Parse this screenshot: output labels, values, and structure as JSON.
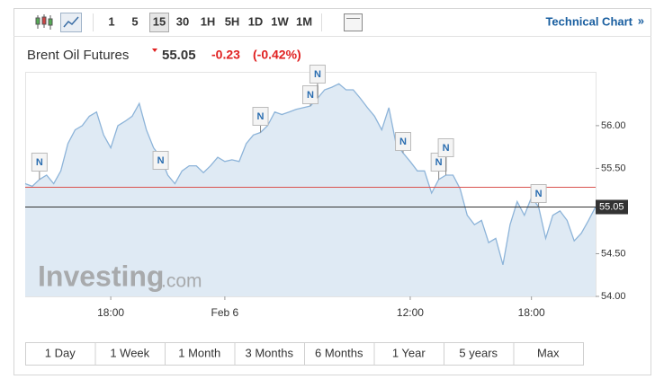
{
  "toolbar": {
    "intervals": [
      "1",
      "5",
      "15",
      "30",
      "1H",
      "5H",
      "1D",
      "1W",
      "1M"
    ],
    "active_interval": 2,
    "link": "Technical Chart",
    "link_icon": "»"
  },
  "header": {
    "title": "Brent Oil Futures",
    "price": "55.05",
    "change": "-0.23",
    "change_pct": "(-0.42%)"
  },
  "watermark": {
    "brand": "Investing",
    "suffix": ".com"
  },
  "ranges": [
    "1 Day",
    "1 Week",
    "1 Month",
    "3 Months",
    "6 Months",
    "1 Year",
    "5 years",
    "Max"
  ],
  "chart_data": {
    "type": "line",
    "color": "#8db4d9",
    "fill": "#dfeaf4",
    "categories": [
      null,
      null,
      null,
      null,
      null,
      null,
      null,
      null,
      null,
      null,
      null,
      null,
      "18:00",
      null,
      null,
      null,
      null,
      null,
      null,
      null,
      null,
      null,
      null,
      null,
      null,
      null,
      null,
      null,
      "Feb 6",
      null,
      null,
      null,
      null,
      null,
      null,
      null,
      null,
      null,
      null,
      null,
      null,
      null,
      null,
      null,
      null,
      null,
      null,
      null,
      null,
      null,
      null,
      null,
      null,
      null,
      "12:00",
      null,
      null,
      null,
      null,
      null,
      null,
      null,
      null,
      null,
      null,
      null,
      null,
      null,
      null,
      null,
      null,
      "18:00",
      null,
      null,
      null,
      null,
      null,
      null,
      null,
      null,
      null
    ],
    "values": [
      55.32,
      55.29,
      55.37,
      55.42,
      55.32,
      55.47,
      55.79,
      55.95,
      56.0,
      56.11,
      56.16,
      55.89,
      55.74,
      56.0,
      56.05,
      56.11,
      56.26,
      55.95,
      55.74,
      55.63,
      55.42,
      55.32,
      55.47,
      55.53,
      55.53,
      55.45,
      55.53,
      55.63,
      55.58,
      55.6,
      55.58,
      55.79,
      55.89,
      55.92,
      56.0,
      56.16,
      56.13,
      56.16,
      56.19,
      56.21,
      56.23,
      56.32,
      56.42,
      56.45,
      56.49,
      56.42,
      56.42,
      56.32,
      56.21,
      56.11,
      55.95,
      56.21,
      55.79,
      55.68,
      55.58,
      55.47,
      55.47,
      55.21,
      55.37,
      55.42,
      55.42,
      55.26,
      54.95,
      54.84,
      54.89,
      54.63,
      54.68,
      54.37,
      54.84,
      55.11,
      54.95,
      55.16,
      55.05,
      54.68,
      54.95,
      55.0,
      54.89,
      54.65,
      54.74,
      54.89,
      55.05
    ],
    "ylim": [
      54,
      56.63
    ],
    "yticks": [
      {
        "value": 54,
        "label": "54.00"
      },
      {
        "value": 54.5,
        "label": "54.50"
      },
      {
        "value": 55.5,
        "label": "55.50"
      },
      {
        "value": 56,
        "label": "56.00"
      }
    ],
    "reference_lines": [
      {
        "value": 55.28,
        "color": "#d9534f"
      },
      {
        "value": 55.05,
        "color": "#333333",
        "label": "55.05"
      }
    ],
    "annotations": [
      "N",
      "N",
      "N",
      "N",
      "N",
      "N",
      "N",
      "N",
      "N"
    ]
  }
}
